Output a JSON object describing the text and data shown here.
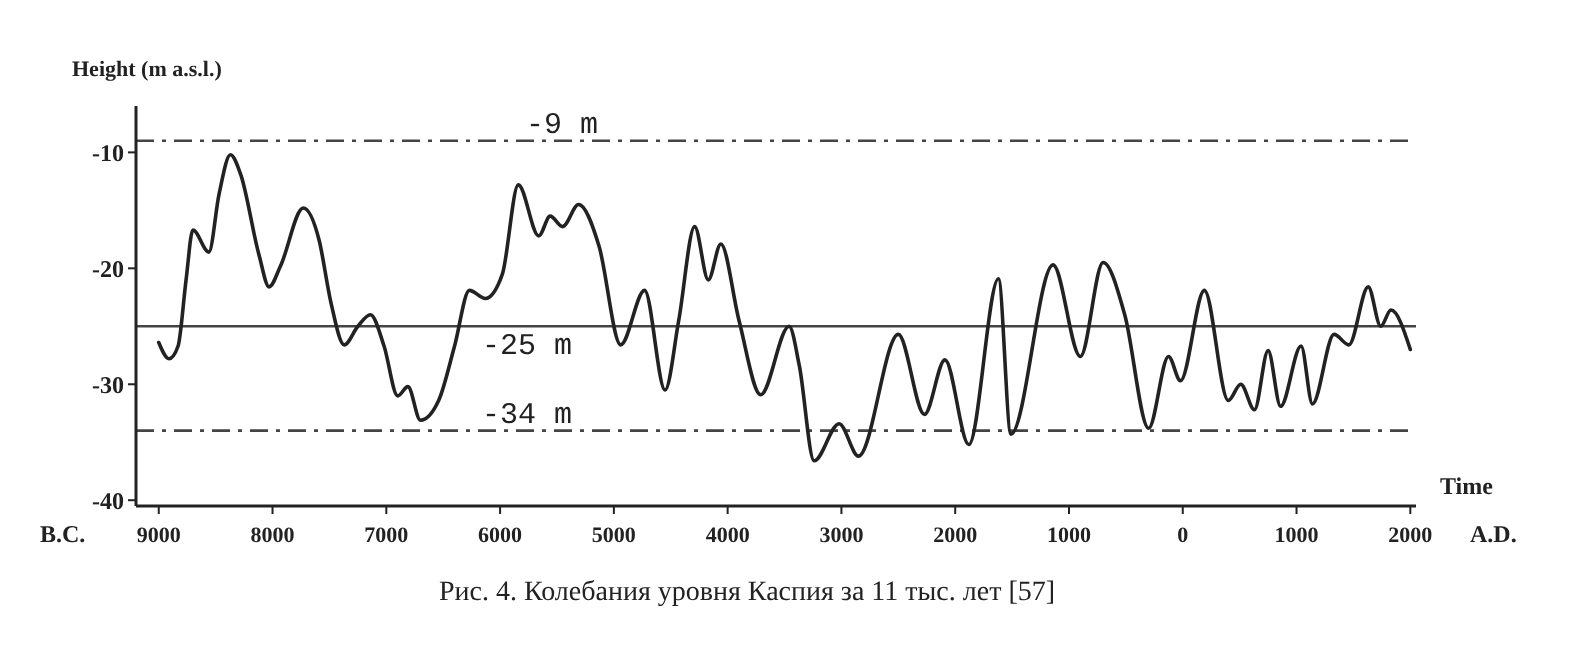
{
  "chart_data": {
    "type": "line",
    "title": "Рис. 4. Колебания уровня Каспия за 11 тыс. лет [57]",
    "xlabel": "Time",
    "ylabel": "Height (m a.s.l.)",
    "annotations": [
      "B.C.",
      "A.D."
    ],
    "x": [
      -9000,
      -8910,
      -8830,
      -8760,
      -8700,
      -8560,
      -8470,
      -8370,
      -8280,
      -8120,
      -8030,
      -7930,
      -7730,
      -7590,
      -7490,
      -7370,
      -7250,
      -7140,
      -7020,
      -6900,
      -6810,
      -6700,
      -6540,
      -6400,
      -6270,
      -6130,
      -5980,
      -5840,
      -5660,
      -5560,
      -5450,
      -5310,
      -5130,
      -4940,
      -4730,
      -4550,
      -4430,
      -4290,
      -4170,
      -4060,
      -3900,
      -3710,
      -3460,
      -3370,
      -3240,
      -3020,
      -2850,
      -2500,
      -2270,
      -2090,
      -1880,
      -1620,
      -1510,
      -1140,
      -900,
      -700,
      -510,
      -300,
      -125,
      -20,
      190,
      400,
      510,
      630,
      750,
      860,
      1040,
      1140,
      1330,
      1460,
      1630,
      1740,
      1830,
      2000
    ],
    "series": [
      {
        "color": "#222222",
        "values": [
          -26.4,
          -27.8,
          -26.7,
          -21,
          -16.7,
          -18.6,
          -13.6,
          -10.2,
          -11.9,
          -18.8,
          -21.6,
          -19.8,
          -14.8,
          -17.6,
          -22.8,
          -26.6,
          -25,
          -24,
          -26.7,
          -31,
          -30.2,
          -33.1,
          -31.4,
          -26.7,
          -21.9,
          -22.6,
          -20.5,
          -12.8,
          -17.2,
          -15.5,
          -16.4,
          -14.5,
          -18.1,
          -26.6,
          -21.9,
          -30.5,
          -24.5,
          -16.4,
          -21,
          -17.9,
          -24.5,
          -30.9,
          -25,
          -28.4,
          -36.6,
          -33.4,
          -36.2,
          -25.7,
          -32.6,
          -27.9,
          -35.2,
          -20.9,
          -34.3,
          -19.7,
          -27.6,
          -19.5,
          -24,
          -33.8,
          -27.6,
          -29.7,
          -21.9,
          -31.4,
          -30,
          -32.2,
          -27.1,
          -31.9,
          -26.7,
          -31.7,
          -25.7,
          -26.6,
          -21.6,
          -25,
          -23.6,
          -27
        ]
      }
    ],
    "xlim": [
      -9200,
      2050
    ],
    "ylim": [
      -40.5,
      -6
    ],
    "xticks": [
      {
        "value": -9000,
        "label": "9000"
      },
      {
        "value": -8000,
        "label": "8000"
      },
      {
        "value": -7000,
        "label": "7000"
      },
      {
        "value": -6000,
        "label": "6000"
      },
      {
        "value": -5000,
        "label": "5000"
      },
      {
        "value": -4000,
        "label": "4000"
      },
      {
        "value": -3000,
        "label": "3000"
      },
      {
        "value": -2000,
        "label": "2000"
      },
      {
        "value": -1000,
        "label": "1000"
      },
      0,
      1000,
      2000
    ],
    "yticks": [
      -10,
      -20,
      -30,
      -40
    ],
    "ref_lines": [
      {
        "axis": "y",
        "value": -9,
        "label": "-9 m",
        "line_style": "dashed",
        "color": "#444444"
      },
      {
        "axis": "y",
        "value": -25,
        "label": "-25 m",
        "line_style": "solid",
        "color": "#444444"
      },
      {
        "axis": "y",
        "value": -34,
        "label": "-34 m",
        "line_style": "dashed",
        "color": "#444444"
      }
    ],
    "grid": false,
    "marker": "none",
    "line_style": "solid"
  }
}
